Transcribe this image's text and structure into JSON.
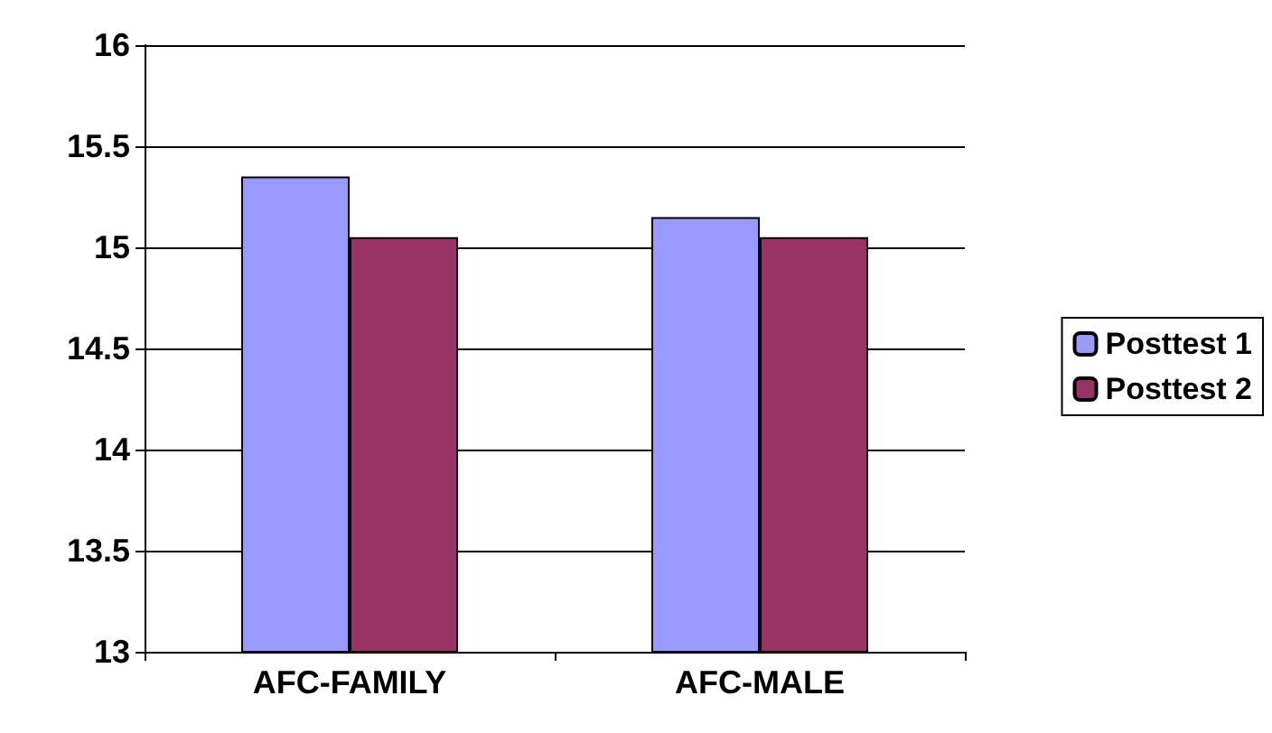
{
  "chart_data": {
    "type": "bar",
    "categories": [
      "AFC-FAMILY",
      "AFC-MALE"
    ],
    "series": [
      {
        "name": "Posttest 1",
        "color": "#9999ff",
        "values": [
          15.35,
          15.15
        ]
      },
      {
        "name": "Posttest 2",
        "color": "#993366",
        "values": [
          15.05,
          15.05
        ]
      }
    ],
    "ylim": [
      13,
      16
    ],
    "yticks": [
      13,
      13.5,
      14,
      14.5,
      15,
      15.5,
      16
    ],
    "grid": "y",
    "legend": "right"
  }
}
